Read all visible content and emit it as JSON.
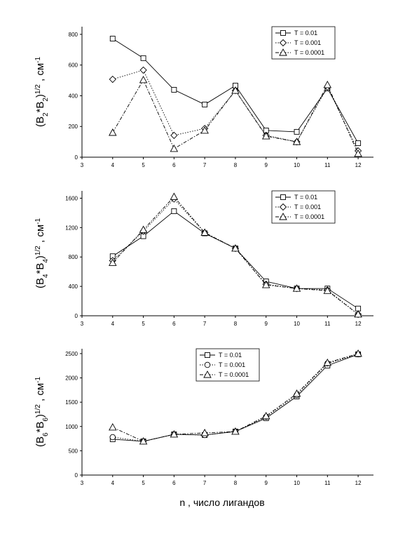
{
  "chart_data": [
    {
      "type": "line",
      "ylabel": [
        "(B",
        "2",
        "*B",
        "2",
        ")",
        "1/2",
        " , см",
        "-1"
      ],
      "x": [
        4,
        5,
        6,
        7,
        8,
        9,
        10,
        11,
        12
      ],
      "xlim": [
        3,
        12.5
      ],
      "xticks": [
        3,
        4,
        5,
        6,
        7,
        8,
        9,
        10,
        11,
        12
      ],
      "ylim": [
        0,
        850
      ],
      "yticks": [
        0,
        200,
        400,
        600,
        800
      ],
      "legend": "upper right",
      "series": [
        {
          "name": "T = 0.01",
          "color": "#000000",
          "marker": "square",
          "dash": "solid",
          "values": [
            772,
            645,
            439,
            343,
            466,
            174,
            165,
            448,
            91
          ]
        },
        {
          "name": "T = 0.001",
          "color": "#000000",
          "marker": "diamond",
          "dash": "dotted",
          "values": [
            507,
            567,
            142,
            187,
            434,
            142,
            100,
            457,
            41
          ]
        },
        {
          "name": "T = 0.0001",
          "color": "#000000",
          "marker": "triangle",
          "dash": "dashdot",
          "values": [
            160,
            503,
            55,
            174,
            434,
            137,
            100,
            471,
            23
          ]
        }
      ]
    },
    {
      "type": "line",
      "ylabel": [
        "(B",
        "4",
        "*B",
        "4",
        ")",
        "1/2",
        " , см",
        "-1"
      ],
      "x": [
        4,
        5,
        6,
        7,
        8,
        9,
        10,
        11,
        12
      ],
      "xlim": [
        3,
        12.5
      ],
      "xticks": [
        3,
        4,
        5,
        6,
        7,
        8,
        9,
        10,
        11,
        12
      ],
      "ylim": [
        0,
        1700
      ],
      "yticks": [
        0,
        400,
        800,
        1200,
        1600
      ],
      "legend": "upper right",
      "series": [
        {
          "name": "T = 0.01",
          "color": "#000000",
          "marker": "square",
          "dash": "solid",
          "values": [
            810,
            1083,
            1424,
            1122,
            917,
            468,
            371,
            371,
            98
          ]
        },
        {
          "name": "T = 0.001",
          "color": "#000000",
          "marker": "diamond",
          "dash": "dotted",
          "values": [
            751,
            1151,
            1590,
            1132,
            917,
            429,
            371,
            351,
            20
          ]
        },
        {
          "name": "T = 0.0001",
          "color": "#000000",
          "marker": "triangle",
          "dash": "dashdot",
          "values": [
            722,
            1171,
            1620,
            1132,
            917,
            420,
            371,
            341,
            20
          ]
        }
      ]
    },
    {
      "type": "line",
      "ylabel": [
        "(B",
        "6",
        "*B",
        "6",
        ")",
        "1/2",
        " , см",
        "-1"
      ],
      "xlabel": "n , число лигандов",
      "x": [
        4,
        5,
        6,
        7,
        8,
        9,
        10,
        11,
        12
      ],
      "xlim": [
        3,
        12.5
      ],
      "xticks": [
        3,
        4,
        5,
        6,
        7,
        8,
        9,
        10,
        11,
        12
      ],
      "ylim": [
        0,
        2600
      ],
      "yticks": [
        0,
        500,
        1000,
        1500,
        2000,
        2500
      ],
      "legend": "upper center",
      "series": [
        {
          "name": "T = 0.01",
          "color": "#000000",
          "marker": "square",
          "dash": "solid",
          "values": [
            737,
            694,
            838,
            824,
            896,
            1171,
            1618,
            2254,
            2486
          ]
        },
        {
          "name": "T = 0.001",
          "color": "#000000",
          "marker": "circle",
          "dash": "dotted",
          "values": [
            780,
            694,
            838,
            824,
            896,
            1199,
            1647,
            2298,
            2486
          ]
        },
        {
          "name": "T = 0.0001",
          "color": "#000000",
          "marker": "triangle",
          "dash": "dashdot",
          "values": [
            983,
            694,
            838,
            867,
            896,
            1214,
            1676,
            2312,
            2500
          ]
        }
      ]
    }
  ]
}
